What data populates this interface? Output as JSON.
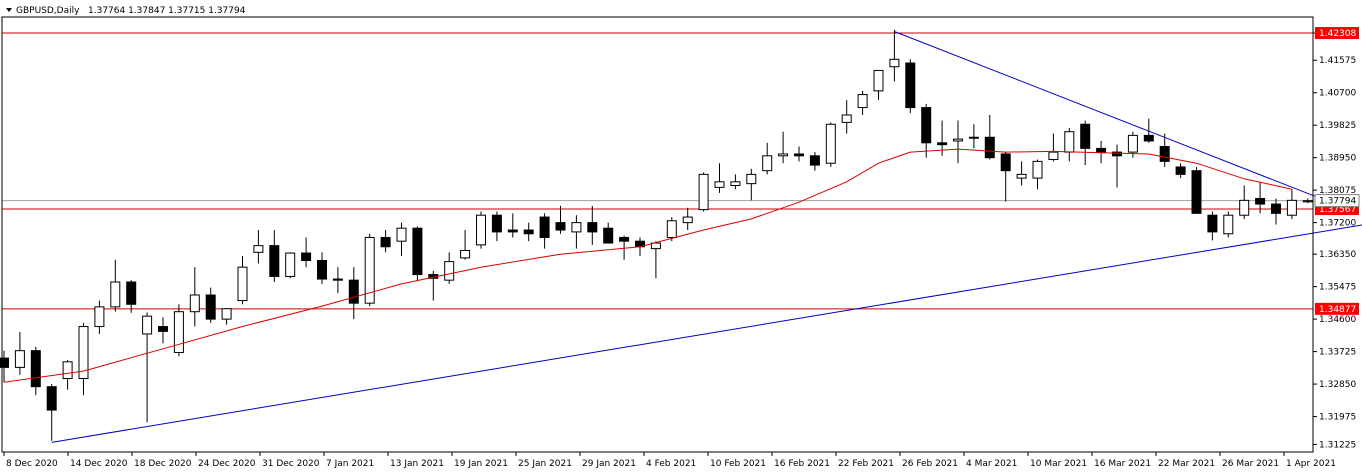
{
  "header": {
    "symbol": "GBPUSD,Daily",
    "ohlc": "1.37764 1.37847 1.37715 1.37794"
  },
  "colors": {
    "background": "#ffffff",
    "axis": "#000000",
    "bull_fill": "#ffffff",
    "bear_fill": "#000000",
    "candle_outline": "#000000",
    "ma_line": "#dd0000",
    "support_line": "#cc0000",
    "trendline": "#0000cc",
    "bid_line": "#a0a0a0",
    "label_red": "#ff0000",
    "label_text": "#ffffff"
  },
  "chart_data": {
    "type": "candlestick",
    "symbol": "GBPUSD",
    "timeframe": "Daily",
    "ylim": [
      1.3102,
      1.4274
    ],
    "y_ticks": [
      "1.42308",
      "1.41575",
      "1.40700",
      "1.39825",
      "1.38950",
      "1.38075",
      "1.37200",
      "1.36350",
      "1.35475",
      "1.34600",
      "1.33725",
      "1.32850",
      "1.31975",
      "1.31225"
    ],
    "x_labels": [
      "8 Dec 2020",
      "14 Dec 2020",
      "18 Dec 2020",
      "24 Dec 2020",
      "31 Dec 2020",
      "7 Jan 2021",
      "13 Jan 2021",
      "19 Jan 2021",
      "25 Jan 2021",
      "29 Jan 2021",
      "4 Feb 2021",
      "10 Feb 2021",
      "16 Feb 2021",
      "22 Feb 2021",
      "26 Feb 2021",
      "4 Mar 2021",
      "10 Mar 2021",
      "16 Mar 2021",
      "22 Mar 2021",
      "26 Mar 2021",
      "1 Apr 2021"
    ],
    "candles": [
      {
        "o": 1.3355,
        "h": 1.3375,
        "l": 1.329,
        "c": 1.333
      },
      {
        "o": 1.333,
        "h": 1.3425,
        "l": 1.331,
        "c": 1.3375
      },
      {
        "o": 1.3375,
        "h": 1.3385,
        "l": 1.3255,
        "c": 1.3278
      },
      {
        "o": 1.3278,
        "h": 1.3285,
        "l": 1.3132,
        "c": 1.3215
      },
      {
        "o": 1.33,
        "h": 1.335,
        "l": 1.327,
        "c": 1.3345
      },
      {
        "o": 1.33,
        "h": 1.345,
        "l": 1.3255,
        "c": 1.344
      },
      {
        "o": 1.344,
        "h": 1.351,
        "l": 1.342,
        "c": 1.3493
      },
      {
        "o": 1.3493,
        "h": 1.362,
        "l": 1.348,
        "c": 1.356
      },
      {
        "o": 1.356,
        "h": 1.3565,
        "l": 1.3477,
        "c": 1.35
      },
      {
        "o": 1.342,
        "h": 1.3478,
        "l": 1.3182,
        "c": 1.3468
      },
      {
        "o": 1.344,
        "h": 1.3465,
        "l": 1.3395,
        "c": 1.3427
      },
      {
        "o": 1.337,
        "h": 1.35,
        "l": 1.336,
        "c": 1.348
      },
      {
        "o": 1.348,
        "h": 1.36,
        "l": 1.344,
        "c": 1.3525
      },
      {
        "o": 1.3525,
        "h": 1.3545,
        "l": 1.345,
        "c": 1.346
      },
      {
        "o": 1.346,
        "h": 1.349,
        "l": 1.3445,
        "c": 1.3488
      },
      {
        "o": 1.351,
        "h": 1.363,
        "l": 1.35,
        "c": 1.36
      },
      {
        "o": 1.364,
        "h": 1.37,
        "l": 1.361,
        "c": 1.3658
      },
      {
        "o": 1.3658,
        "h": 1.37,
        "l": 1.356,
        "c": 1.3575
      },
      {
        "o": 1.3575,
        "h": 1.364,
        "l": 1.357,
        "c": 1.3638
      },
      {
        "o": 1.3638,
        "h": 1.368,
        "l": 1.36,
        "c": 1.3618
      },
      {
        "o": 1.3618,
        "h": 1.364,
        "l": 1.3555,
        "c": 1.3568
      },
      {
        "o": 1.3568,
        "h": 1.36,
        "l": 1.353,
        "c": 1.3565
      },
      {
        "o": 1.3565,
        "h": 1.36,
        "l": 1.346,
        "c": 1.3503
      },
      {
        "o": 1.3503,
        "h": 1.369,
        "l": 1.3495,
        "c": 1.368
      },
      {
        "o": 1.368,
        "h": 1.37,
        "l": 1.364,
        "c": 1.3655
      },
      {
        "o": 1.367,
        "h": 1.372,
        "l": 1.363,
        "c": 1.3705
      },
      {
        "o": 1.3705,
        "h": 1.371,
        "l": 1.3562,
        "c": 1.358
      },
      {
        "o": 1.358,
        "h": 1.359,
        "l": 1.351,
        "c": 1.357
      },
      {
        "o": 1.3565,
        "h": 1.364,
        "l": 1.3555,
        "c": 1.3615
      },
      {
        "o": 1.3625,
        "h": 1.37,
        "l": 1.362,
        "c": 1.3645
      },
      {
        "o": 1.366,
        "h": 1.375,
        "l": 1.365,
        "c": 1.374
      },
      {
        "o": 1.374,
        "h": 1.375,
        "l": 1.367,
        "c": 1.3695
      },
      {
        "o": 1.37,
        "h": 1.3745,
        "l": 1.368,
        "c": 1.3695
      },
      {
        "o": 1.37,
        "h": 1.372,
        "l": 1.367,
        "c": 1.369
      },
      {
        "o": 1.3735,
        "h": 1.3745,
        "l": 1.365,
        "c": 1.368
      },
      {
        "o": 1.372,
        "h": 1.3765,
        "l": 1.369,
        "c": 1.37
      },
      {
        "o": 1.3695,
        "h": 1.374,
        "l": 1.365,
        "c": 1.372
      },
      {
        "o": 1.372,
        "h": 1.3765,
        "l": 1.366,
        "c": 1.3695
      },
      {
        "o": 1.3705,
        "h": 1.372,
        "l": 1.367,
        "c": 1.3665
      },
      {
        "o": 1.368,
        "h": 1.3685,
        "l": 1.362,
        "c": 1.367
      },
      {
        "o": 1.367,
        "h": 1.368,
        "l": 1.363,
        "c": 1.3655
      },
      {
        "o": 1.365,
        "h": 1.367,
        "l": 1.357,
        "c": 1.3665
      },
      {
        "o": 1.368,
        "h": 1.3735,
        "l": 1.367,
        "c": 1.3725
      },
      {
        "o": 1.372,
        "h": 1.376,
        "l": 1.37,
        "c": 1.3735
      },
      {
        "o": 1.3755,
        "h": 1.3855,
        "l": 1.375,
        "c": 1.385
      },
      {
        "o": 1.3815,
        "h": 1.388,
        "l": 1.38,
        "c": 1.383
      },
      {
        "o": 1.382,
        "h": 1.385,
        "l": 1.381,
        "c": 1.383
      },
      {
        "o": 1.3825,
        "h": 1.3865,
        "l": 1.378,
        "c": 1.385
      },
      {
        "o": 1.386,
        "h": 1.3935,
        "l": 1.385,
        "c": 1.39
      },
      {
        "o": 1.39,
        "h": 1.3965,
        "l": 1.388,
        "c": 1.3905
      },
      {
        "o": 1.3905,
        "h": 1.3925,
        "l": 1.3885,
        "c": 1.39
      },
      {
        "o": 1.39,
        "h": 1.391,
        "l": 1.386,
        "c": 1.3875
      },
      {
        "o": 1.388,
        "h": 1.399,
        "l": 1.387,
        "c": 1.3985
      },
      {
        "o": 1.399,
        "h": 1.405,
        "l": 1.396,
        "c": 1.401
      },
      {
        "o": 1.403,
        "h": 1.4075,
        "l": 1.401,
        "c": 1.4065
      },
      {
        "o": 1.4075,
        "h": 1.413,
        "l": 1.405,
        "c": 1.413
      },
      {
        "o": 1.414,
        "h": 1.424,
        "l": 1.41,
        "c": 1.416
      },
      {
        "o": 1.415,
        "h": 1.416,
        "l": 1.4015,
        "c": 1.403
      },
      {
        "o": 1.403,
        "h": 1.404,
        "l": 1.3895,
        "c": 1.3935
      },
      {
        "o": 1.3935,
        "h": 1.3995,
        "l": 1.39,
        "c": 1.393
      },
      {
        "o": 1.394,
        "h": 1.3995,
        "l": 1.388,
        "c": 1.3945
      },
      {
        "o": 1.395,
        "h": 1.3985,
        "l": 1.392,
        "c": 1.395
      },
      {
        "o": 1.395,
        "h": 1.401,
        "l": 1.389,
        "c": 1.3895
      },
      {
        "o": 1.3905,
        "h": 1.391,
        "l": 1.3777,
        "c": 1.386
      },
      {
        "o": 1.384,
        "h": 1.3885,
        "l": 1.382,
        "c": 1.385
      },
      {
        "o": 1.384,
        "h": 1.389,
        "l": 1.381,
        "c": 1.3885
      },
      {
        "o": 1.389,
        "h": 1.396,
        "l": 1.3885,
        "c": 1.391
      },
      {
        "o": 1.391,
        "h": 1.3975,
        "l": 1.3885,
        "c": 1.3965
      },
      {
        "o": 1.3985,
        "h": 1.3995,
        "l": 1.3875,
        "c": 1.392
      },
      {
        "o": 1.392,
        "h": 1.394,
        "l": 1.388,
        "c": 1.391
      },
      {
        "o": 1.391,
        "h": 1.393,
        "l": 1.3815,
        "c": 1.39
      },
      {
        "o": 1.391,
        "h": 1.3965,
        "l": 1.3895,
        "c": 1.3955
      },
      {
        "o": 1.3955,
        "h": 1.4,
        "l": 1.3935,
        "c": 1.394
      },
      {
        "o": 1.3925,
        "h": 1.396,
        "l": 1.387,
        "c": 1.3885
      },
      {
        "o": 1.387,
        "h": 1.388,
        "l": 1.384,
        "c": 1.385
      },
      {
        "o": 1.386,
        "h": 1.387,
        "l": 1.375,
        "c": 1.3745
      },
      {
        "o": 1.374,
        "h": 1.375,
        "l": 1.3672,
        "c": 1.3695
      },
      {
        "o": 1.369,
        "h": 1.375,
        "l": 1.368,
        "c": 1.374
      },
      {
        "o": 1.374,
        "h": 1.382,
        "l": 1.373,
        "c": 1.378
      },
      {
        "o": 1.3785,
        "h": 1.383,
        "l": 1.3745,
        "c": 1.377
      },
      {
        "o": 1.377,
        "h": 1.3785,
        "l": 1.3715,
        "c": 1.3745
      },
      {
        "o": 1.374,
        "h": 1.381,
        "l": 1.373,
        "c": 1.378
      },
      {
        "o": 1.3776,
        "h": 1.3785,
        "l": 1.3772,
        "c": 1.3779
      }
    ],
    "moving_average": [
      {
        "i": 0,
        "v": 1.329
      },
      {
        "i": 5,
        "v": 1.332
      },
      {
        "i": 10,
        "v": 1.338
      },
      {
        "i": 15,
        "v": 1.344
      },
      {
        "i": 20,
        "v": 1.3495
      },
      {
        "i": 25,
        "v": 1.3555
      },
      {
        "i": 30,
        "v": 1.36
      },
      {
        "i": 35,
        "v": 1.3635
      },
      {
        "i": 40,
        "v": 1.3655
      },
      {
        "i": 44,
        "v": 1.37
      },
      {
        "i": 47,
        "v": 1.373
      },
      {
        "i": 50,
        "v": 1.3775
      },
      {
        "i": 53,
        "v": 1.383
      },
      {
        "i": 55,
        "v": 1.388
      },
      {
        "i": 57,
        "v": 1.391
      },
      {
        "i": 60,
        "v": 1.3918
      },
      {
        "i": 63,
        "v": 1.391
      },
      {
        "i": 66,
        "v": 1.3912
      },
      {
        "i": 69,
        "v": 1.3908
      },
      {
        "i": 72,
        "v": 1.3905
      },
      {
        "i": 75,
        "v": 1.388
      },
      {
        "i": 78,
        "v": 1.3838
      },
      {
        "i": 81,
        "v": 1.381
      }
    ],
    "horizontal_levels": [
      {
        "value": 1.42308,
        "label": "1.42308",
        "color": "#cc0000"
      },
      {
        "value": 1.37567,
        "label": "1.37567",
        "color": "#cc0000"
      },
      {
        "value": 1.34877,
        "label": "1.34877",
        "color": "#cc0000"
      }
    ],
    "bid_level": {
      "value": 1.37794,
      "label": "1.37794"
    },
    "trendlines": [
      {
        "from": {
          "i": 3,
          "v": 1.3128
        },
        "to": {
          "i": 87,
          "v": 1.3725
        },
        "color": "#0000cc"
      },
      {
        "from": {
          "i": 56,
          "v": 1.4235
        },
        "to": {
          "i": 84,
          "v": 1.3765
        },
        "color": "#0000cc"
      }
    ]
  }
}
